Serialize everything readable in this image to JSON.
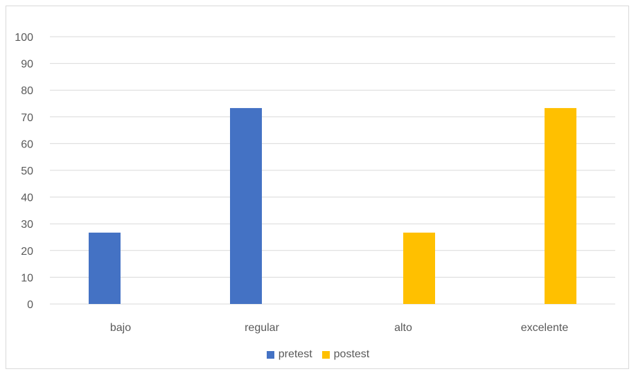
{
  "chart_data": {
    "type": "bar",
    "categories": [
      "bajo",
      "regular",
      "alto",
      "excelente"
    ],
    "series": [
      {
        "name": "pretest",
        "values": [
          26.7,
          73.3,
          0,
          0
        ],
        "color": "#4472C4"
      },
      {
        "name": "postest",
        "values": [
          0,
          0,
          26.7,
          73.3
        ],
        "color": "#FFC000"
      }
    ],
    "ylim": [
      0,
      100
    ],
    "yticks": [
      0,
      10,
      20,
      30,
      40,
      50,
      60,
      70,
      80,
      90,
      100
    ],
    "grid": true,
    "legend": "bottom",
    "gridColor": "#d9d9d9",
    "textColor": "#595959"
  }
}
